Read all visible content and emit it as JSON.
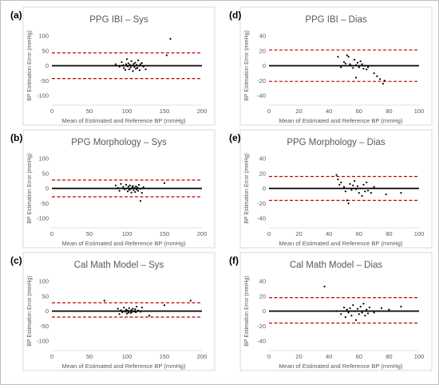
{
  "chart_data": [
    {
      "type": "scatter",
      "panel_label": "(a)",
      "title": "PPG IBI – Sys",
      "xlabel": "Mean of Estimated and Reference BP (mmHg)",
      "ylabel": "BP Estimation Error (mmHg)",
      "xlim": [
        0,
        200
      ],
      "ylim": [
        -100,
        100
      ],
      "xticks": [
        0,
        50,
        100,
        150,
        200
      ],
      "yticks": [
        -100,
        -50,
        0,
        50,
        100
      ],
      "mean_line": 0,
      "limits_of_agreement": [
        43,
        -43
      ],
      "grid": false,
      "points": [
        [
          85,
          5
        ],
        [
          90,
          -3
        ],
        [
          93,
          12
        ],
        [
          95,
          2
        ],
        [
          96,
          -8
        ],
        [
          98,
          -14
        ],
        [
          99,
          5
        ],
        [
          100,
          22
        ],
        [
          101,
          -2
        ],
        [
          102,
          8
        ],
        [
          103,
          -12
        ],
        [
          104,
          3
        ],
        [
          105,
          -6
        ],
        [
          106,
          15
        ],
        [
          107,
          1
        ],
        [
          108,
          -18
        ],
        [
          109,
          6
        ],
        [
          110,
          -4
        ],
        [
          111,
          10
        ],
        [
          112,
          -10
        ],
        [
          113,
          3
        ],
        [
          114,
          -7
        ],
        [
          115,
          18
        ],
        [
          116,
          0
        ],
        [
          117,
          -15
        ],
        [
          118,
          5
        ],
        [
          120,
          9
        ],
        [
          122,
          -3
        ],
        [
          125,
          -12
        ],
        [
          153,
          35
        ],
        [
          158,
          90
        ]
      ]
    },
    {
      "type": "scatter",
      "panel_label": "(b)",
      "title": "PPG Morphology – Sys",
      "xlabel": "Mean of Estimated and Reference BP (mmHg)",
      "ylabel": "BP Estimation Error (mmHg)",
      "xlim": [
        0,
        200
      ],
      "ylim": [
        -100,
        100
      ],
      "xticks": [
        0,
        50,
        100,
        150,
        200
      ],
      "yticks": [
        -100,
        -50,
        0,
        50,
        100
      ],
      "mean_line": 0,
      "limits_of_agreement": [
        28,
        -28
      ],
      "grid": false,
      "points": [
        [
          85,
          10
        ],
        [
          88,
          2
        ],
        [
          90,
          -8
        ],
        [
          92,
          15
        ],
        [
          95,
          5
        ],
        [
          97,
          -3
        ],
        [
          99,
          12
        ],
        [
          100,
          0
        ],
        [
          101,
          -10
        ],
        [
          102,
          6
        ],
        [
          103,
          -5
        ],
        [
          104,
          10
        ],
        [
          105,
          -2
        ],
        [
          106,
          -14
        ],
        [
          107,
          4
        ],
        [
          108,
          8
        ],
        [
          109,
          -6
        ],
        [
          110,
          2
        ],
        [
          111,
          -12
        ],
        [
          112,
          7
        ],
        [
          113,
          -4
        ],
        [
          114,
          3
        ],
        [
          115,
          -8
        ],
        [
          116,
          12
        ],
        [
          118,
          -1
        ],
        [
          120,
          -15
        ],
        [
          122,
          4
        ],
        [
          118,
          -42
        ],
        [
          150,
          18
        ]
      ]
    },
    {
      "type": "scatter",
      "panel_label": "(c)",
      "title": "Cal Math Model – Sys",
      "xlabel": "Mean of Estimated and Reference BP (mmHg)",
      "ylabel": "BP Estimation Error (mmHg)",
      "xlim": [
        0,
        200
      ],
      "ylim": [
        -100,
        100
      ],
      "xticks": [
        0,
        50,
        100,
        150,
        200
      ],
      "yticks": [
        -100,
        -50,
        0,
        50,
        100
      ],
      "mean_line": 0,
      "limits_of_agreement": [
        28,
        -20
      ],
      "grid": false,
      "points": [
        [
          70,
          35
        ],
        [
          88,
          8
        ],
        [
          90,
          -10
        ],
        [
          92,
          3
        ],
        [
          94,
          -4
        ],
        [
          96,
          12
        ],
        [
          98,
          -2
        ],
        [
          99,
          5
        ],
        [
          100,
          -8
        ],
        [
          101,
          2
        ],
        [
          102,
          -5
        ],
        [
          103,
          10
        ],
        [
          104,
          0
        ],
        [
          105,
          -6
        ],
        [
          106,
          4
        ],
        [
          107,
          -3
        ],
        [
          108,
          8
        ],
        [
          110,
          -1
        ],
        [
          111,
          6
        ],
        [
          112,
          -4
        ],
        [
          113,
          15
        ],
        [
          115,
          2
        ],
        [
          118,
          -2
        ],
        [
          120,
          12
        ],
        [
          130,
          -15
        ],
        [
          150,
          20
        ],
        [
          185,
          35
        ]
      ]
    },
    {
      "type": "scatter",
      "panel_label": "(d)",
      "title": "PPG IBI – Dias",
      "xlabel": "Mean of Estimated and Reference BP (mmHg)",
      "ylabel": "BP Estimation Error (mmHg)",
      "xlim": [
        0,
        100
      ],
      "ylim": [
        -40,
        40
      ],
      "xticks": [
        0,
        20,
        40,
        60,
        80,
        100
      ],
      "yticks": [
        -40,
        -20,
        0,
        20,
        40
      ],
      "mean_line": 0,
      "limits_of_agreement": [
        21,
        -21
      ],
      "grid": false,
      "points": [
        [
          46,
          12
        ],
        [
          48,
          -2
        ],
        [
          50,
          5
        ],
        [
          51,
          3
        ],
        [
          52,
          14
        ],
        [
          53,
          12
        ],
        [
          54,
          2
        ],
        [
          55,
          0
        ],
        [
          56,
          -3
        ],
        [
          57,
          8
        ],
        [
          58,
          1
        ],
        [
          59,
          4
        ],
        [
          60,
          -2
        ],
        [
          61,
          6
        ],
        [
          62,
          2
        ],
        [
          63,
          -4
        ],
        [
          64,
          0
        ],
        [
          65,
          -5
        ],
        [
          66,
          -2
        ],
        [
          58,
          -16
        ],
        [
          70,
          -10
        ],
        [
          72,
          -14
        ],
        [
          74,
          -18
        ],
        [
          76,
          -24
        ],
        [
          77,
          -20
        ]
      ]
    },
    {
      "type": "scatter",
      "panel_label": "(e)",
      "title": "PPG Morphology – Dias",
      "xlabel": "Mean of Estimated and Reference BP (mmHg)",
      "ylabel": "BP Estimation Error (mmHg)",
      "xlim": [
        0,
        100
      ],
      "ylim": [
        -40,
        40
      ],
      "xticks": [
        0,
        20,
        40,
        60,
        80,
        100
      ],
      "yticks": [
        -40,
        -20,
        0,
        20,
        40
      ],
      "mean_line": 0,
      "limits_of_agreement": [
        16,
        -16
      ],
      "grid": false,
      "points": [
        [
          45,
          18
        ],
        [
          46,
          12
        ],
        [
          47,
          5
        ],
        [
          48,
          8
        ],
        [
          50,
          2
        ],
        [
          51,
          -4
        ],
        [
          52,
          -16
        ],
        [
          53,
          -20
        ],
        [
          54,
          6
        ],
        [
          55,
          -2
        ],
        [
          56,
          4
        ],
        [
          57,
          10
        ],
        [
          58,
          -1
        ],
        [
          59,
          3
        ],
        [
          60,
          -6
        ],
        [
          61,
          0
        ],
        [
          62,
          -10
        ],
        [
          63,
          5
        ],
        [
          64,
          -4
        ],
        [
          65,
          8
        ],
        [
          66,
          -3
        ],
        [
          68,
          -6
        ],
        [
          70,
          2
        ],
        [
          78,
          -8
        ],
        [
          88,
          -6
        ]
      ]
    },
    {
      "type": "scatter",
      "panel_label": "(f)",
      "title": "Cal Math Model – Dias",
      "xlabel": "Mean of Estimated and Reference BP (mmHg)",
      "ylabel": "BP Estimation Error (mmHg)",
      "xlim": [
        0,
        100
      ],
      "ylim": [
        -40,
        40
      ],
      "xticks": [
        0,
        20,
        40,
        60,
        80,
        100
      ],
      "yticks": [
        -40,
        -20,
        0,
        20,
        40
      ],
      "mean_line": 0,
      "limits_of_agreement": [
        18,
        -16
      ],
      "grid": false,
      "points": [
        [
          37,
          33
        ],
        [
          45,
          0
        ],
        [
          48,
          -4
        ],
        [
          50,
          5
        ],
        [
          51,
          -8
        ],
        [
          52,
          2
        ],
        [
          53,
          -2
        ],
        [
          54,
          4
        ],
        [
          55,
          -6
        ],
        [
          56,
          8
        ],
        [
          57,
          0
        ],
        [
          58,
          -12
        ],
        [
          59,
          3
        ],
        [
          60,
          -4
        ],
        [
          61,
          6
        ],
        [
          62,
          -2
        ],
        [
          63,
          10
        ],
        [
          64,
          -6
        ],
        [
          65,
          2
        ],
        [
          66,
          -3
        ],
        [
          67,
          5
        ],
        [
          70,
          -2
        ],
        [
          75,
          4
        ],
        [
          80,
          2
        ],
        [
          88,
          6
        ]
      ]
    }
  ]
}
